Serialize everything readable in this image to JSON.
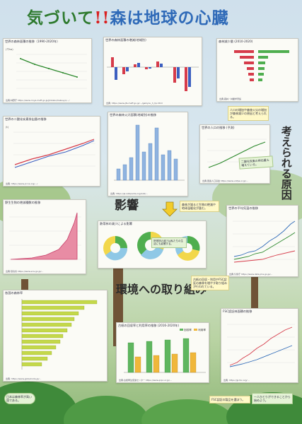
{
  "poster": {
    "title_part1": "気づいて",
    "title_part2": "!!",
    "title_part3": "森は地球の心臓",
    "section_reasons": "考えられる原因",
    "section_impact": "影響",
    "section_action": "環境への取り組み"
  },
  "colors": {
    "title_green": "#2e7a2e",
    "title_red": "#d92020",
    "title_blue": "#2f6ab8"
  },
  "cards": {
    "forest_area": {
      "title": "世界の森林面積の推移（1990-2020年）",
      "unit": "(千ha)",
      "source": "出典:林野庁 https://www.rinya.maff.go.jp/j/kikaku/hakusyo/…/"
    },
    "forest_change": {
      "title": "世界の森林面積の増減(地域別)",
      "source": "出典: https://www.jfa.maff.go.jp/…/gaikyou_h_hp.html"
    },
    "ranking": {
      "title": "森林減少量 (2010-2020)",
      "source": "出典:森林・林業学習館"
    },
    "co2": {
      "title": "世界の二酸化炭素排出量の推移",
      "unit": "(t)",
      "source": "出典: https://www.jccca.org/…/"
    },
    "fires": {
      "title": "世界の森林火災面積(地域別)の推移",
      "source": "出典: https://ja.wikipedia.org/wiki/…"
    },
    "population": {
      "title": "世界の人口の推移 (予測)",
      "source": "出典:国連人口基金 https://www.unfpa.or.jp/…"
    },
    "extinct": {
      "title": "野生生物の絶滅種数の推移",
      "source": "出典:環境省 https://www.env.go.jp/…"
    },
    "pie": {
      "title": "熱帯林の減少による影響"
    },
    "temperature": {
      "title": "世界の平均気温の推移",
      "source": "出典:気象庁 https://www.data.jma.go.jp/…"
    },
    "hbar": {
      "title": "各国の森林率",
      "source": "出典: https://www.globalnote.jp/…"
    },
    "paper": {
      "title": "古紙の回収率と利用率の推移 (2016-2020年)",
      "legend_a": "回収率",
      "legend_b": "利用率",
      "source": "出典:古紙再生促進センター https://www.prpc.or.jp/…"
    },
    "fsc": {
      "title": "FSC認証林面積の推移",
      "source": "出典: https://jp.fsc.org/…"
    }
  },
  "notes": {
    "reason_note": "人口の増加や森林火災の増加が森林減少の原因と考えられる。",
    "reason_note2": "二酸化炭素の排出量も増えている。",
    "impact_note": "森林が減ると生物の絶滅や地球温暖化が進む。",
    "pie_note": "熱帯林の減少は私たちの生活にも影響する。",
    "action_note": "古紙の回収・利用やFSC認証の森林を増やす取り組みが行われている。",
    "hbar_note": "日本は森林率が高い国である。",
    "fsc_note": "FSC認証の製品を選ぼう。",
    "bottom_note": "一人ひとりができることから始めよう。"
  }
}
